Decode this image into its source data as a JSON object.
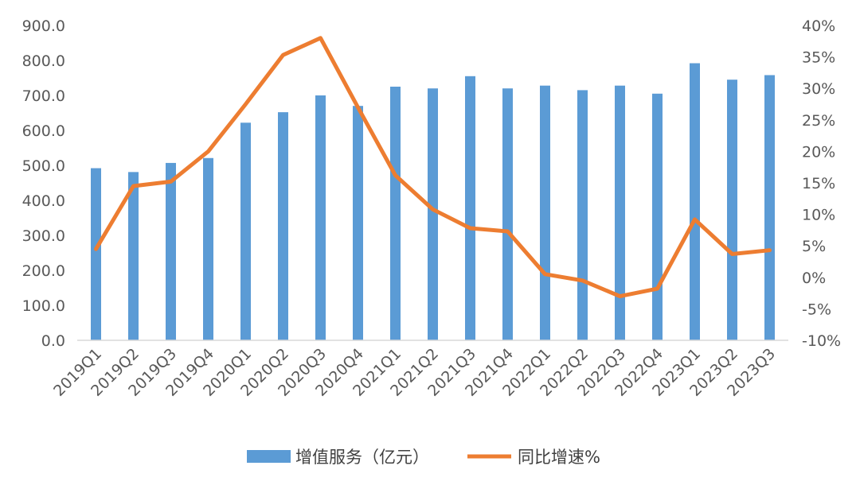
{
  "chart_data": {
    "type": "bar+line",
    "categories": [
      "2019Q1",
      "2019Q2",
      "2019Q3",
      "2019Q4",
      "2020Q1",
      "2020Q2",
      "2020Q3",
      "2020Q4",
      "2021Q1",
      "2021Q2",
      "2021Q3",
      "2021Q4",
      "2022Q1",
      "2022Q2",
      "2022Q3",
      "2022Q4",
      "2023Q1",
      "2023Q2",
      "2023Q3"
    ],
    "series": [
      {
        "name": "增值服务（亿元）",
        "type": "bar",
        "axis": "left",
        "color": "#5B9BD5",
        "values": [
          492,
          481,
          507,
          521,
          622,
          652,
          700,
          670,
          725,
          720,
          755,
          720,
          728,
          715,
          728,
          705,
          792,
          745,
          758
        ]
      },
      {
        "name": "同比增速%",
        "type": "line",
        "axis": "right",
        "color": "#ED7D31",
        "values": [
          4.5,
          14.5,
          15.2,
          20.0,
          27.5,
          35.3,
          38.0,
          27.0,
          16.2,
          10.8,
          7.8,
          7.3,
          0.5,
          -0.5,
          -3.0,
          -1.8,
          9.2,
          3.7,
          4.3
        ]
      }
    ],
    "left_axis": {
      "min": 0,
      "max": 900,
      "step": 100,
      "decimals": 1
    },
    "right_axis": {
      "min": -10,
      "max": 40,
      "step": 5,
      "suffix": "%"
    },
    "grid": false,
    "legend": "bottom-center",
    "title": "",
    "xlabel": "",
    "ylabel": ""
  }
}
